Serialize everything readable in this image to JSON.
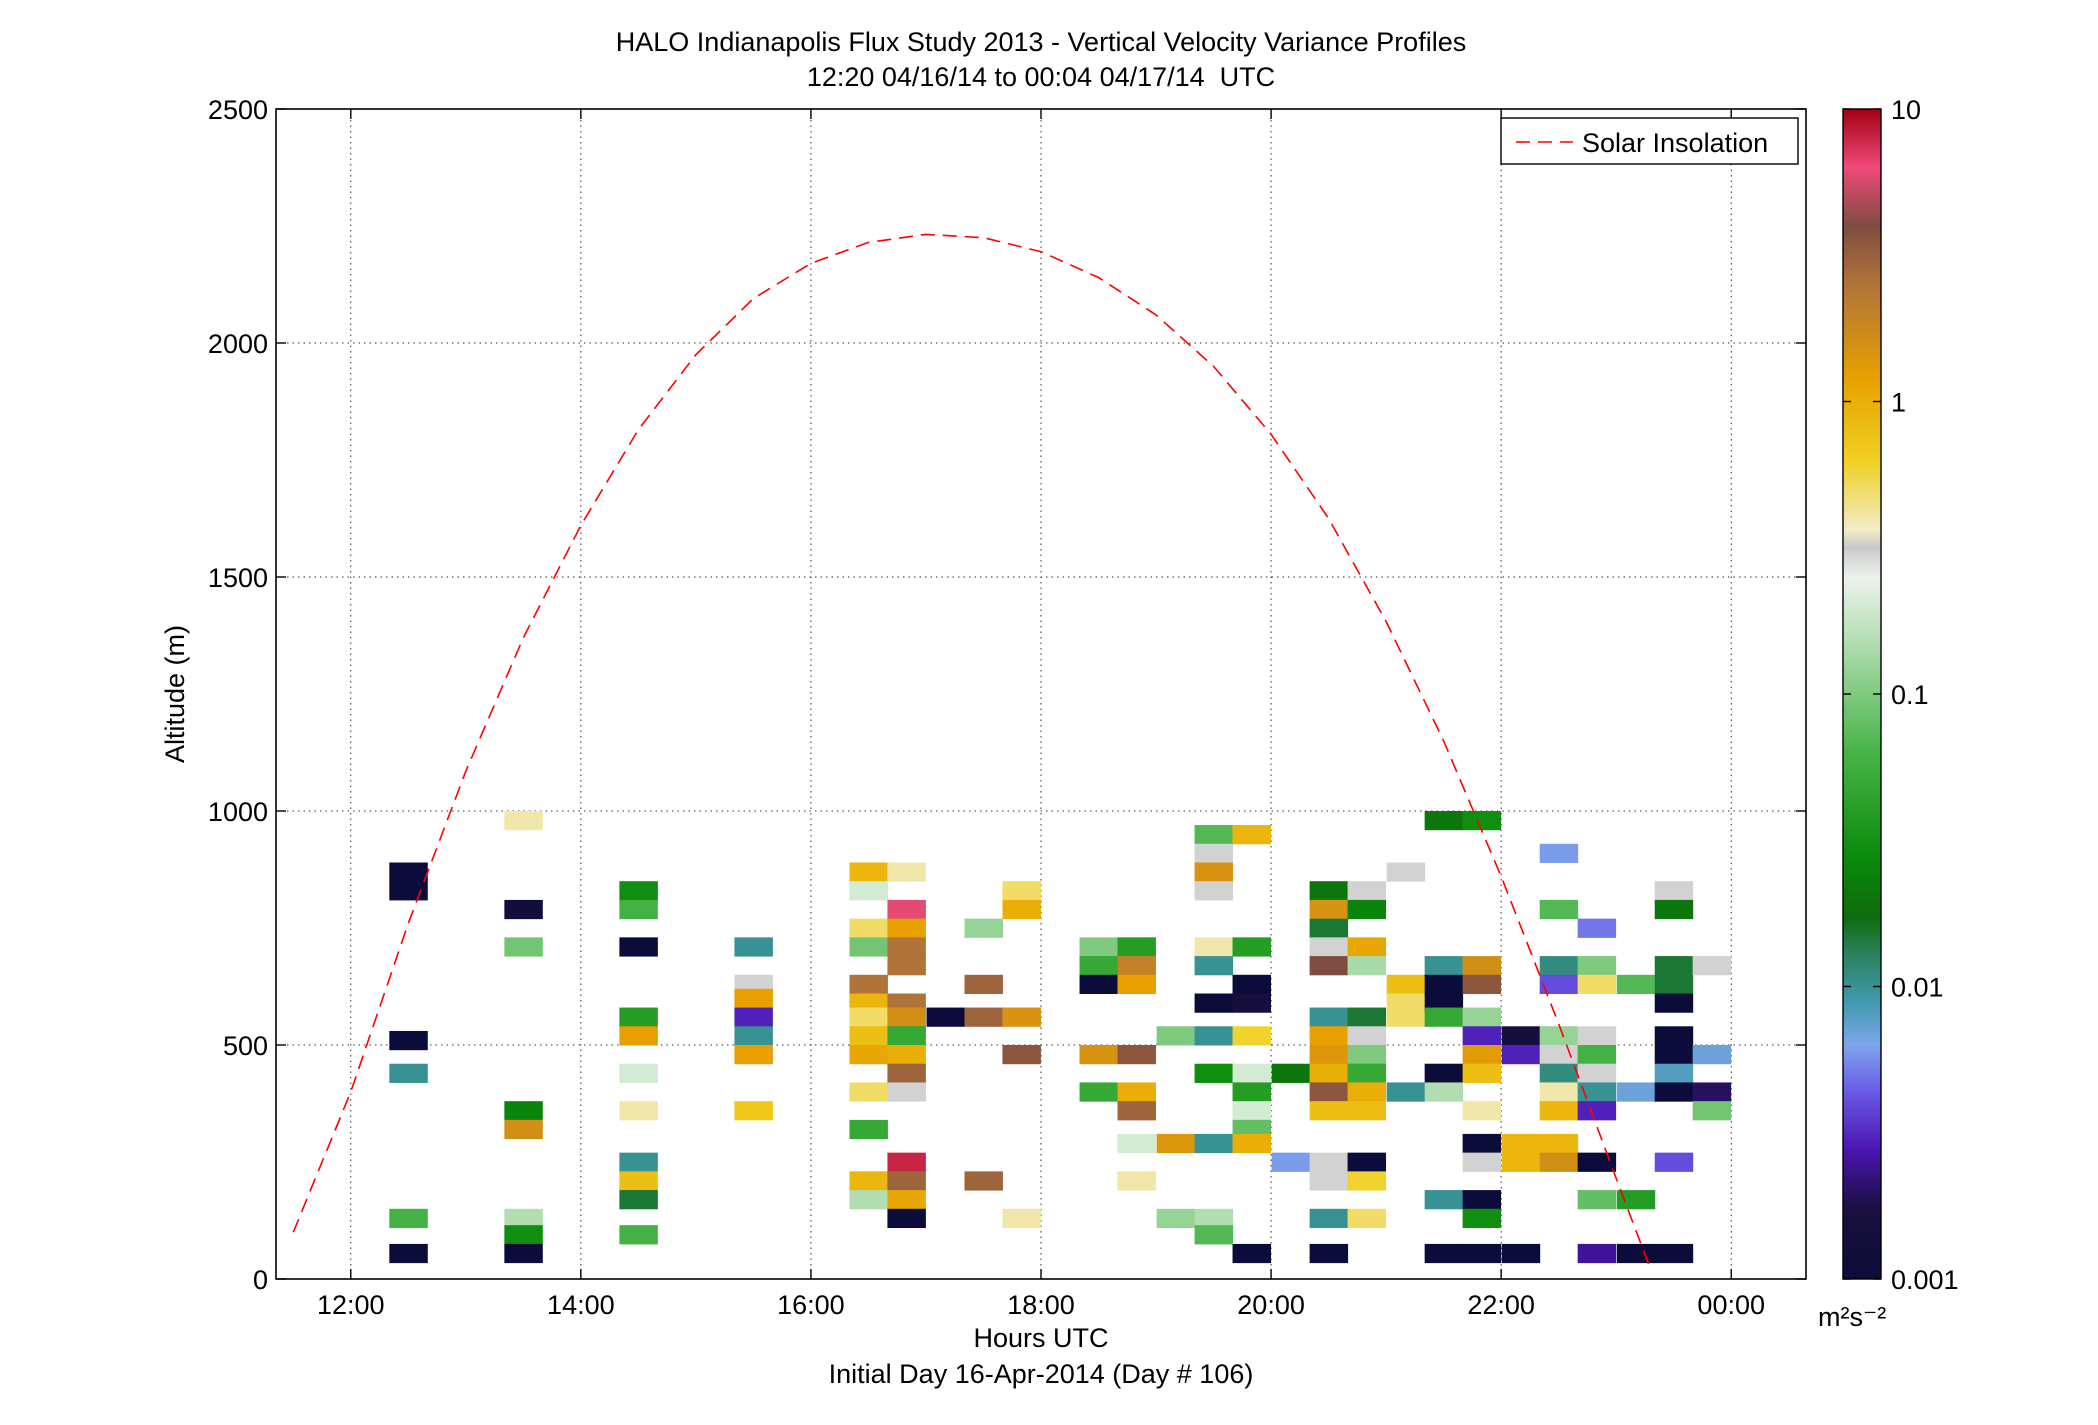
{
  "chart_data": {
    "type": "heatmap",
    "title": "HALO Indianapolis Flux Study 2013 - Vertical Velocity Variance Profiles",
    "subtitle": "12:20 04/16/14 to 00:04 04/17/14  UTC",
    "xlabel": "Hours UTC",
    "xlabel2": "Initial Day 16-Apr-2014 (Day # 106)",
    "ylabel": "Altitude (m)",
    "xlim": [
      11.35,
      24.65
    ],
    "ylim": [
      0,
      2500
    ],
    "x_ticks": [
      {
        "value": 12,
        "label": "12:00"
      },
      {
        "value": 14,
        "label": "14:00"
      },
      {
        "value": 16,
        "label": "16:00"
      },
      {
        "value": 18,
        "label": "18:00"
      },
      {
        "value": 20,
        "label": "20:00"
      },
      {
        "value": 22,
        "label": "22:00"
      },
      {
        "value": 24,
        "label": "00:00"
      }
    ],
    "y_ticks": [
      {
        "value": 0,
        "label": "0"
      },
      {
        "value": 500,
        "label": "500"
      },
      {
        "value": 1000,
        "label": "1000"
      },
      {
        "value": 1500,
        "label": "1500"
      },
      {
        "value": 2000,
        "label": "2000"
      },
      {
        "value": 2500,
        "label": "2500"
      }
    ],
    "grid": true,
    "legend": {
      "entry": "Solar Insolation",
      "placement": "top-right",
      "color": "#ff0000",
      "style": "dashed"
    },
    "colorbar": {
      "scale": "log",
      "range": [
        0.001,
        10
      ],
      "tick_labels": [
        {
          "value": 10,
          "label": "10"
        },
        {
          "value": 1,
          "label": "1"
        },
        {
          "value": 0.1,
          "label": "0.1"
        },
        {
          "value": 0.01,
          "label": "0.01"
        },
        {
          "value": 0.001,
          "label": "0.001"
        }
      ],
      "unit_label": "m²s⁻²",
      "stops": [
        [
          0.0,
          "#0c0c3a"
        ],
        [
          0.06,
          "#1a1040"
        ],
        [
          0.11,
          "#4a14b0"
        ],
        [
          0.16,
          "#6a5ae6"
        ],
        [
          0.2,
          "#7ea6ec"
        ],
        [
          0.24,
          "#3d98a8"
        ],
        [
          0.28,
          "#2a8058"
        ],
        [
          0.31,
          "#0d6c0d"
        ],
        [
          0.36,
          "#0a8a0a"
        ],
        [
          0.45,
          "#47b447"
        ],
        [
          0.55,
          "#b8e0b8"
        ],
        [
          0.6,
          "#eef3ee"
        ],
        [
          0.625,
          "#c8c8c8"
        ],
        [
          0.64,
          "#f2ecc8"
        ],
        [
          0.7,
          "#f0d020"
        ],
        [
          0.77,
          "#e8a000"
        ],
        [
          0.85,
          "#b0743a"
        ],
        [
          0.9,
          "#7e4c40"
        ],
        [
          0.95,
          "#f04a7a"
        ],
        [
          1.0,
          "#a30014"
        ]
      ]
    },
    "solar_insolation_curve": [
      [
        11.5,
        100
      ],
      [
        12.0,
        400
      ],
      [
        12.5,
        760
      ],
      [
        13.0,
        1085
      ],
      [
        13.5,
        1370
      ],
      [
        14.0,
        1610
      ],
      [
        14.5,
        1815
      ],
      [
        15.0,
        1975
      ],
      [
        15.5,
        2095
      ],
      [
        16.0,
        2170
      ],
      [
        16.5,
        2215
      ],
      [
        17.0,
        2232
      ],
      [
        17.5,
        2225
      ],
      [
        18.0,
        2195
      ],
      [
        18.5,
        2140
      ],
      [
        19.0,
        2060
      ],
      [
        19.5,
        1950
      ],
      [
        20.0,
        1805
      ],
      [
        20.5,
        1625
      ],
      [
        21.0,
        1405
      ],
      [
        21.5,
        1150
      ],
      [
        22.0,
        860
      ],
      [
        22.5,
        545
      ],
      [
        23.0,
        215
      ],
      [
        23.3,
        20
      ]
    ],
    "cell_width_hours": 0.33,
    "cell_height_m": 40,
    "cells": [
      [
        12.5,
        850,
        0.001,
        2
      ],
      [
        12.5,
        510,
        0.001
      ],
      [
        12.5,
        440,
        0.01
      ],
      [
        12.5,
        130,
        0.06
      ],
      [
        12.5,
        55,
        0.001
      ],
      [
        13.5,
        980,
        0.4
      ],
      [
        13.5,
        790,
        0.0012
      ],
      [
        13.5,
        710,
        0.09
      ],
      [
        13.5,
        360,
        0.025
      ],
      [
        13.5,
        320,
        1.6
      ],
      [
        13.5,
        130,
        0.15
      ],
      [
        13.5,
        95,
        0.03
      ],
      [
        13.5,
        55,
        0.001
      ],
      [
        14.5,
        830,
        0.03
      ],
      [
        14.5,
        790,
        0.06
      ],
      [
        14.5,
        710,
        0.001
      ],
      [
        14.5,
        560,
        0.04
      ],
      [
        14.5,
        520,
        1.2
      ],
      [
        14.5,
        440,
        0.2
      ],
      [
        14.5,
        360,
        0.4
      ],
      [
        14.5,
        250,
        0.01
      ],
      [
        14.5,
        210,
        0.8
      ],
      [
        14.5,
        170,
        0.015
      ],
      [
        14.5,
        95,
        0.06
      ],
      [
        15.5,
        710,
        0.01
      ],
      [
        15.5,
        630,
        0.3
      ],
      [
        15.5,
        600,
        1.2
      ],
      [
        15.5,
        560,
        0.003
      ],
      [
        15.5,
        520,
        0.01
      ],
      [
        15.5,
        480,
        1.2
      ],
      [
        15.5,
        360,
        0.7
      ],
      [
        16.5,
        870,
        0.9
      ],
      [
        16.5,
        830,
        0.2
      ],
      [
        16.5,
        750,
        0.5
      ],
      [
        16.5,
        710,
        0.09
      ],
      [
        16.5,
        630,
        2.5
      ],
      [
        16.5,
        590,
        0.9
      ],
      [
        16.5,
        560,
        0.5
      ],
      [
        16.5,
        520,
        0.8
      ],
      [
        16.5,
        480,
        1.1
      ],
      [
        16.5,
        400,
        0.5
      ],
      [
        16.5,
        320,
        0.05
      ],
      [
        16.5,
        210,
        0.9
      ],
      [
        16.5,
        170,
        0.15
      ],
      [
        16.83,
        870,
        0.4
      ],
      [
        16.83,
        790,
        6
      ],
      [
        16.83,
        750,
        1.2
      ],
      [
        16.83,
        710,
        2.5
      ],
      [
        16.83,
        670,
        2.5
      ],
      [
        16.83,
        590,
        2.5
      ],
      [
        16.83,
        560,
        1.6
      ],
      [
        16.83,
        520,
        0.05
      ],
      [
        16.83,
        480,
        1.0
      ],
      [
        16.83,
        440,
        3
      ],
      [
        16.83,
        400,
        0.3
      ],
      [
        16.83,
        250,
        8
      ],
      [
        16.83,
        210,
        3
      ],
      [
        16.83,
        170,
        1.1
      ],
      [
        16.83,
        130,
        0.001
      ],
      [
        17.17,
        560,
        0.001
      ],
      [
        17.5,
        750,
        0.12
      ],
      [
        17.5,
        630,
        3
      ],
      [
        17.5,
        560,
        3
      ],
      [
        17.5,
        210,
        3
      ],
      [
        17.83,
        830,
        0.5
      ],
      [
        17.83,
        790,
        1.0
      ],
      [
        17.83,
        560,
        1.5
      ],
      [
        17.83,
        480,
        3.5
      ],
      [
        17.83,
        130,
        0.4
      ],
      [
        18.5,
        710,
        0.1
      ],
      [
        18.5,
        670,
        0.05
      ],
      [
        18.5,
        630,
        0.001
      ],
      [
        18.5,
        480,
        1.5
      ],
      [
        18.5,
        400,
        0.05
      ],
      [
        18.83,
        710,
        0.04
      ],
      [
        18.83,
        670,
        2.0
      ],
      [
        18.83,
        630,
        1.2
      ],
      [
        18.83,
        480,
        3.5
      ],
      [
        18.83,
        400,
        1.0
      ],
      [
        18.83,
        360,
        3
      ],
      [
        18.83,
        290,
        0.2
      ],
      [
        18.83,
        210,
        0.4
      ],
      [
        19.17,
        520,
        0.1
      ],
      [
        19.17,
        290,
        1.4
      ],
      [
        19.17,
        130,
        0.12
      ],
      [
        19.5,
        950,
        0.07
      ],
      [
        19.5,
        910,
        0.3
      ],
      [
        19.5,
        870,
        1.5
      ],
      [
        19.5,
        830,
        0.3
      ],
      [
        19.5,
        710,
        0.4
      ],
      [
        19.5,
        670,
        0.01
      ],
      [
        19.5,
        590,
        0.001
      ],
      [
        19.5,
        520,
        0.01
      ],
      [
        19.5,
        440,
        0.03
      ],
      [
        19.5,
        290,
        0.01
      ],
      [
        19.5,
        130,
        0.15
      ],
      [
        19.5,
        95,
        0.07
      ],
      [
        19.83,
        950,
        0.9
      ],
      [
        19.83,
        710,
        0.04
      ],
      [
        19.83,
        630,
        0.001
      ],
      [
        19.83,
        590,
        0.0015
      ],
      [
        19.83,
        520,
        0.6
      ],
      [
        19.83,
        440,
        0.2
      ],
      [
        19.83,
        400,
        0.04
      ],
      [
        19.83,
        360,
        0.2
      ],
      [
        19.83,
        320,
        0.08
      ],
      [
        19.83,
        290,
        1.0
      ],
      [
        19.83,
        55,
        0.001
      ],
      [
        20.17,
        440,
        0.02
      ],
      [
        20.17,
        250,
        0.006
      ],
      [
        20.5,
        830,
        0.02
      ],
      [
        20.5,
        790,
        1.5
      ],
      [
        20.5,
        750,
        0.015
      ],
      [
        20.5,
        710,
        0.3
      ],
      [
        20.5,
        670,
        4
      ],
      [
        20.5,
        560,
        0.01
      ],
      [
        20.5,
        520,
        1.2
      ],
      [
        20.5,
        480,
        1.4
      ],
      [
        20.5,
        440,
        1.0
      ],
      [
        20.5,
        400,
        3.5
      ],
      [
        20.5,
        360,
        0.8
      ],
      [
        20.5,
        250,
        0.3
      ],
      [
        20.5,
        210,
        0.3
      ],
      [
        20.5,
        130,
        0.01
      ],
      [
        20.5,
        55,
        0.001
      ],
      [
        20.83,
        830,
        0.3
      ],
      [
        20.83,
        790,
        0.025
      ],
      [
        20.83,
        710,
        1.1
      ],
      [
        20.83,
        670,
        0.14
      ],
      [
        20.83,
        560,
        0.015
      ],
      [
        20.83,
        520,
        0.3
      ],
      [
        20.83,
        480,
        0.1
      ],
      [
        20.83,
        440,
        0.05
      ],
      [
        20.83,
        400,
        1.0
      ],
      [
        20.83,
        360,
        0.8
      ],
      [
        20.83,
        250,
        0.001
      ],
      [
        20.83,
        210,
        0.6
      ],
      [
        20.83,
        130,
        0.5
      ],
      [
        21.17,
        870,
        0.3
      ],
      [
        21.17,
        630,
        0.8
      ],
      [
        21.17,
        590,
        0.5
      ],
      [
        21.17,
        560,
        0.5
      ],
      [
        21.17,
        400,
        0.01
      ],
      [
        21.5,
        980,
        0.02
      ],
      [
        21.5,
        670,
        0.01
      ],
      [
        21.5,
        630,
        0.001
      ],
      [
        21.5,
        590,
        0.001
      ],
      [
        21.5,
        560,
        0.05
      ],
      [
        21.5,
        440,
        0.001
      ],
      [
        21.5,
        400,
        0.15
      ],
      [
        21.5,
        170,
        0.01
      ],
      [
        21.5,
        55,
        0.001
      ],
      [
        21.83,
        980,
        0.03
      ],
      [
        21.83,
        670,
        1.6
      ],
      [
        21.83,
        630,
        3.5
      ],
      [
        21.83,
        560,
        0.12
      ],
      [
        21.83,
        520,
        0.003
      ],
      [
        21.83,
        480,
        1.3
      ],
      [
        21.83,
        440,
        0.8
      ],
      [
        21.83,
        360,
        0.4
      ],
      [
        21.83,
        290,
        0.001
      ],
      [
        21.83,
        250,
        0.3
      ],
      [
        21.83,
        170,
        0.001
      ],
      [
        21.83,
        130,
        0.03
      ],
      [
        21.83,
        55,
        0.001
      ],
      [
        22.17,
        520,
        0.0015
      ],
      [
        22.17,
        480,
        0.003
      ],
      [
        22.17,
        290,
        0.9
      ],
      [
        22.17,
        250,
        0.9
      ],
      [
        22.17,
        55,
        0.001
      ],
      [
        22.5,
        910,
        0.006
      ],
      [
        22.5,
        790,
        0.07
      ],
      [
        22.5,
        670,
        0.011
      ],
      [
        22.5,
        630,
        0.004
      ],
      [
        22.5,
        520,
        0.12
      ],
      [
        22.5,
        480,
        0.3
      ],
      [
        22.5,
        440,
        0.011
      ],
      [
        22.5,
        400,
        0.4
      ],
      [
        22.5,
        360,
        0.9
      ],
      [
        22.5,
        290,
        0.9
      ],
      [
        22.5,
        250,
        1.6
      ],
      [
        22.83,
        750,
        0.005
      ],
      [
        22.83,
        670,
        0.1
      ],
      [
        22.83,
        630,
        0.5
      ],
      [
        22.83,
        520,
        0.3
      ],
      [
        22.83,
        480,
        0.06
      ],
      [
        22.83,
        440,
        0.3
      ],
      [
        22.83,
        400,
        0.01
      ],
      [
        22.83,
        360,
        0.003
      ],
      [
        22.83,
        250,
        0.001
      ],
      [
        22.83,
        170,
        0.08
      ],
      [
        22.83,
        55,
        0.0025
      ],
      [
        23.17,
        630,
        0.07
      ],
      [
        23.17,
        400,
        0.007
      ],
      [
        23.17,
        170,
        0.04
      ],
      [
        23.17,
        55,
        0.001
      ],
      [
        23.5,
        830,
        0.3
      ],
      [
        23.5,
        790,
        0.02
      ],
      [
        23.5,
        670,
        0.015
      ],
      [
        23.5,
        630,
        0.015
      ],
      [
        23.5,
        590,
        0.001
      ],
      [
        23.5,
        520,
        0.001
      ],
      [
        23.5,
        480,
        0.001
      ],
      [
        23.5,
        440,
        0.008
      ],
      [
        23.5,
        400,
        0.001
      ],
      [
        23.5,
        250,
        0.004
      ],
      [
        23.5,
        55,
        0.001
      ],
      [
        23.83,
        670,
        0.3
      ],
      [
        23.83,
        480,
        0.007
      ],
      [
        23.83,
        400,
        0.002
      ],
      [
        23.83,
        360,
        0.09
      ]
    ]
  }
}
